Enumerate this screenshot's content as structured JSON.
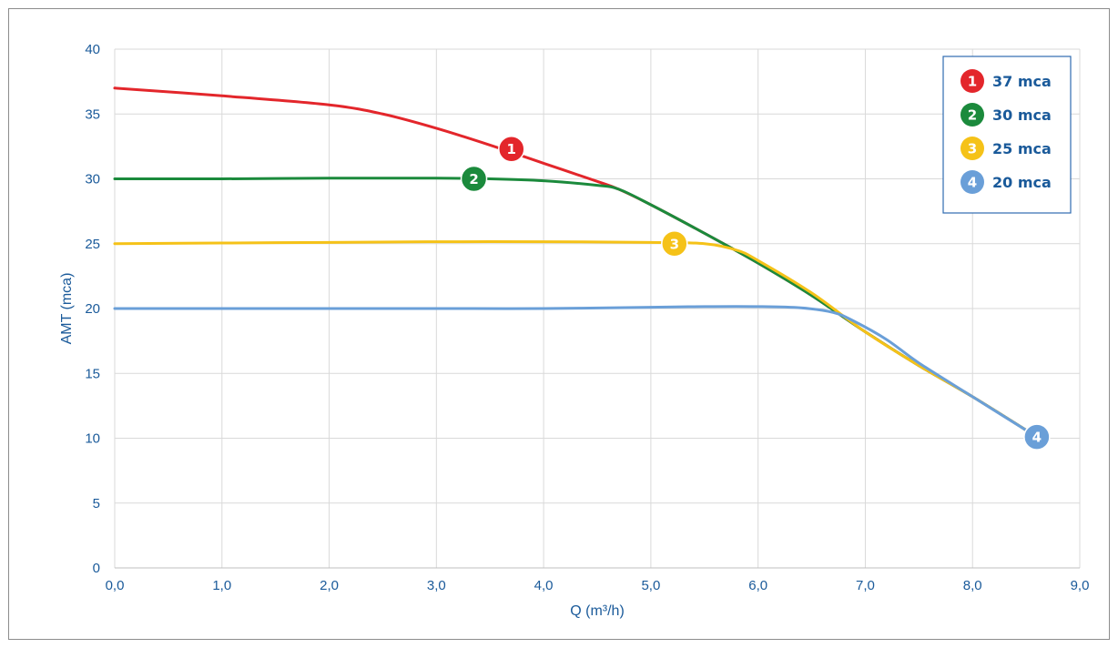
{
  "chart_data": {
    "type": "line",
    "xlabel": "Q (m³/h)",
    "ylabel": "AMT (mca)",
    "xlim": [
      0,
      9
    ],
    "ylim": [
      0,
      40
    ],
    "x_ticks": [
      {
        "value": 0,
        "label": "0,0"
      },
      {
        "value": 1,
        "label": "1,0"
      },
      {
        "value": 2,
        "label": "2,0"
      },
      {
        "value": 3,
        "label": "3,0"
      },
      {
        "value": 4,
        "label": "4,0"
      },
      {
        "value": 5,
        "label": "5,0"
      },
      {
        "value": 6,
        "label": "6,0"
      },
      {
        "value": 7,
        "label": "7,0"
      },
      {
        "value": 8,
        "label": "8,0"
      },
      {
        "value": 9,
        "label": "9,0"
      }
    ],
    "y_ticks": [
      {
        "value": 0,
        "label": "0"
      },
      {
        "value": 5,
        "label": "5"
      },
      {
        "value": 10,
        "label": "10"
      },
      {
        "value": 15,
        "label": "15"
      },
      {
        "value": 20,
        "label": "20"
      },
      {
        "value": 25,
        "label": "25"
      },
      {
        "value": 30,
        "label": "30"
      },
      {
        "value": 35,
        "label": "35"
      },
      {
        "value": 40,
        "label": "40"
      }
    ],
    "grid": true,
    "legend_position": "top-right",
    "series": [
      {
        "name": "37 mca",
        "number": "1",
        "color": "#e3262b",
        "marker": {
          "x": 3.7,
          "y": 32.3
        },
        "points": [
          [
            0,
            37
          ],
          [
            1,
            36.4
          ],
          [
            2,
            35.7
          ],
          [
            2.5,
            35.0
          ],
          [
            3,
            33.9
          ],
          [
            3.5,
            32.6
          ],
          [
            4,
            31.2
          ],
          [
            4.5,
            29.8
          ],
          [
            4.7,
            29.2
          ],
          [
            5,
            28.0
          ],
          [
            5.5,
            25.8
          ],
          [
            6,
            23.5
          ],
          [
            6.5,
            21.0
          ],
          [
            7,
            18.2
          ],
          [
            7.5,
            15.6
          ],
          [
            8,
            13.2
          ],
          [
            8.6,
            10.1
          ]
        ]
      },
      {
        "name": "30 mca",
        "number": "2",
        "color": "#1b8a3c",
        "marker": {
          "x": 3.35,
          "y": 30.0
        },
        "points": [
          [
            0,
            30
          ],
          [
            1,
            30.0
          ],
          [
            2,
            30.05
          ],
          [
            3,
            30.05
          ],
          [
            3.5,
            30.0
          ],
          [
            4,
            29.85
          ],
          [
            4.5,
            29.5
          ],
          [
            4.7,
            29.2
          ],
          [
            5,
            28.0
          ],
          [
            5.5,
            25.8
          ],
          [
            6,
            23.5
          ],
          [
            6.5,
            21.0
          ],
          [
            7,
            18.2
          ],
          [
            7.5,
            15.6
          ],
          [
            8,
            13.2
          ],
          [
            8.6,
            10.1
          ]
        ]
      },
      {
        "name": "25 mca",
        "number": "3",
        "color": "#f5c218",
        "marker": {
          "x": 5.22,
          "y": 25.0
        },
        "points": [
          [
            0,
            25
          ],
          [
            1,
            25.05
          ],
          [
            2,
            25.1
          ],
          [
            3,
            25.15
          ],
          [
            4,
            25.15
          ],
          [
            5,
            25.1
          ],
          [
            5.5,
            25.0
          ],
          [
            5.8,
            24.5
          ],
          [
            6,
            23.7
          ],
          [
            6.5,
            21.2
          ],
          [
            7,
            18.2
          ],
          [
            7.5,
            15.6
          ],
          [
            8,
            13.2
          ],
          [
            8.6,
            10.1
          ]
        ]
      },
      {
        "name": "20 mca",
        "number": "4",
        "color": "#6a9fd8",
        "marker": {
          "x": 8.6,
          "y": 10.1
        },
        "points": [
          [
            0,
            20
          ],
          [
            1,
            20
          ],
          [
            2,
            20
          ],
          [
            3,
            20
          ],
          [
            4,
            20.0
          ],
          [
            5,
            20.1
          ],
          [
            5.5,
            20.15
          ],
          [
            6,
            20.15
          ],
          [
            6.4,
            20.05
          ],
          [
            6.7,
            19.7
          ],
          [
            6.9,
            19.0
          ],
          [
            7.2,
            17.6
          ],
          [
            7.5,
            15.8
          ],
          [
            8,
            13.2
          ],
          [
            8.6,
            10.1
          ]
        ]
      }
    ]
  }
}
